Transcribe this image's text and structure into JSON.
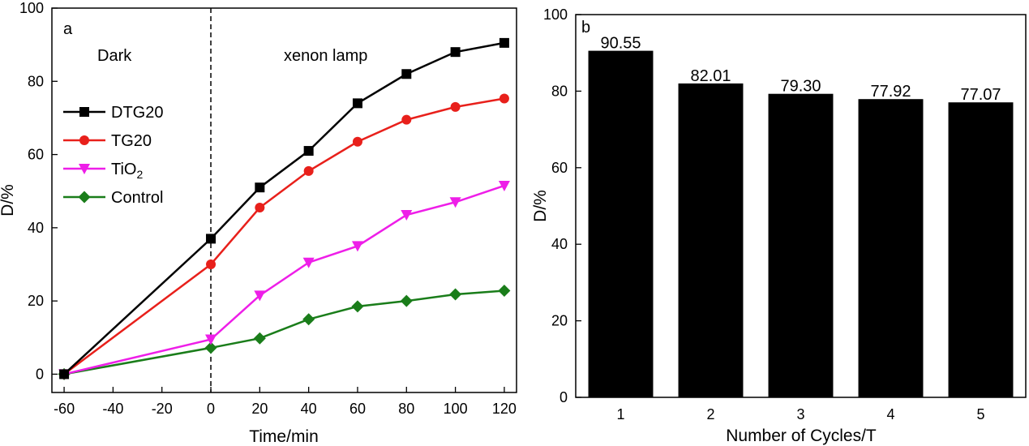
{
  "chart_data": [
    {
      "type": "line",
      "panel_label": "a",
      "xlabel": "Time/min",
      "ylabel": "D/%",
      "xlim": [
        -65,
        125
      ],
      "ylim": [
        -5,
        100
      ],
      "xticks": [
        -60,
        -40,
        -20,
        0,
        20,
        40,
        60,
        80,
        100,
        120
      ],
      "yticks": [
        0,
        20,
        40,
        60,
        80,
        100
      ],
      "divider_x": 0,
      "annotations": {
        "left": "Dark",
        "right": "xenon lamp"
      },
      "legend_position": "left-middle",
      "series": [
        {
          "name": "DTG20",
          "color": "#000000",
          "marker": "square",
          "x": [
            -60,
            0,
            20,
            40,
            60,
            80,
            100,
            120
          ],
          "y": [
            0,
            37,
            51,
            61,
            74,
            82,
            88,
            90.5
          ]
        },
        {
          "name": "TG20",
          "color": "#e8201b",
          "marker": "circle",
          "x": [
            -60,
            0,
            20,
            40,
            60,
            80,
            100,
            120
          ],
          "y": [
            0,
            30,
            45.5,
            55.5,
            63.5,
            69.5,
            73,
            75.3
          ]
        },
        {
          "name": "TiO2",
          "legend_base": "TiO",
          "legend_sub": "2",
          "color": "#ee1ee8",
          "marker": "triangle-down",
          "x": [
            -60,
            0,
            20,
            40,
            60,
            80,
            100,
            120
          ],
          "y": [
            0,
            9.5,
            21.5,
            30.5,
            35,
            43.5,
            47,
            51.5
          ]
        },
        {
          "name": "Control",
          "color": "#1a7d1a",
          "marker": "diamond",
          "x": [
            -60,
            0,
            20,
            40,
            60,
            80,
            100,
            120
          ],
          "y": [
            0,
            7.2,
            9.8,
            15,
            18.5,
            20,
            21.8,
            22.8
          ]
        }
      ]
    },
    {
      "type": "bar",
      "panel_label": "b",
      "xlabel": "Number of Cycles/T",
      "ylabel": "D/%",
      "categories": [
        "1",
        "2",
        "3",
        "4",
        "5"
      ],
      "values": [
        90.55,
        82.01,
        79.3,
        77.92,
        77.07
      ],
      "value_labels": [
        "90.55",
        "82.01",
        "79.30",
        "77.92",
        "77.07"
      ],
      "ylim": [
        0,
        100
      ],
      "yticks": [
        0,
        20,
        40,
        60,
        80,
        100
      ],
      "bar_color": "#000000"
    }
  ]
}
